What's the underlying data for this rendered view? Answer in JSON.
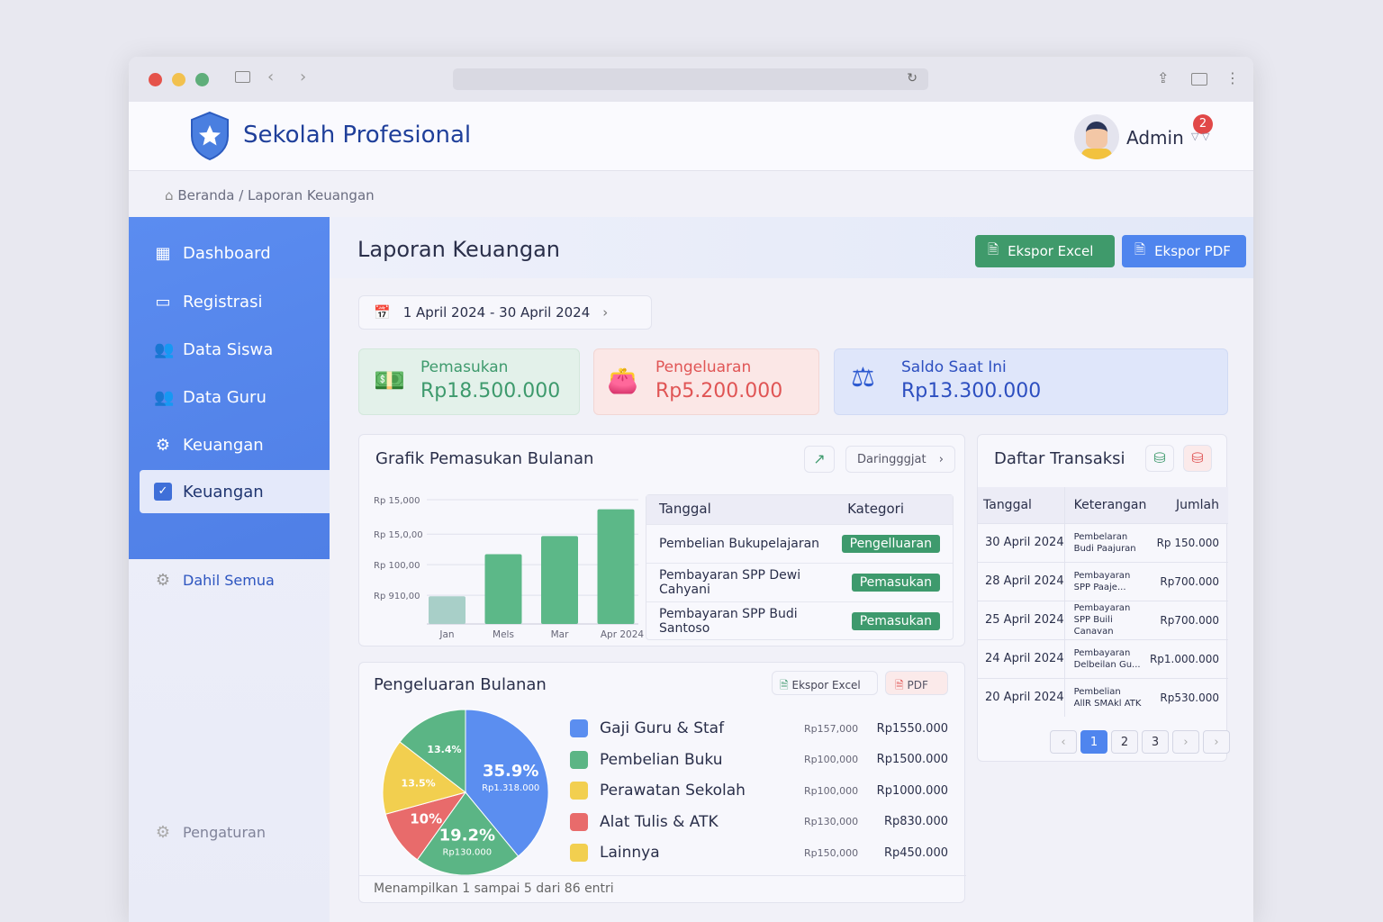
{
  "app": {
    "name": "Sekolah Profesional",
    "user": "Admin",
    "notifications": "2"
  },
  "breadcrumb": [
    "Beranda",
    "Laporan Keuangan"
  ],
  "sidebar": {
    "items": [
      {
        "label": "Dashboard",
        "icon": "grid-icon"
      },
      {
        "label": "Registrasi",
        "icon": "folder-icon"
      },
      {
        "label": "Data Siswa",
        "icon": "users-icon"
      },
      {
        "label": "Data Guru",
        "icon": "users-icon"
      },
      {
        "label": "Keuangan",
        "icon": "money-icon"
      },
      {
        "label": "Keuangan",
        "icon": "check-icon",
        "active": true
      }
    ],
    "extra": "Dahil Semua",
    "settings": "Pengaturan"
  },
  "page": {
    "title": "Laporan Keuangan",
    "export_excel": "Ekspor Excel",
    "export_pdf": "Ekspor PDF",
    "date_range": "1 April 2024 - 30 April 2024"
  },
  "stats": [
    {
      "label": "Pemasukan",
      "value": "Rp18.500.000",
      "color": "#3e9a6d"
    },
    {
      "label": "Pengeluaran",
      "value": "Rp5.200.000",
      "color": "#e05555"
    },
    {
      "label": "Saldo Saat Ini",
      "value": "Rp13.300.000",
      "color": "#2d4fc0"
    }
  ],
  "income_chart": {
    "title": "Grafik Pemasukan Bulanan",
    "filter": "Daringggjat"
  },
  "chart_data": [
    {
      "type": "bar",
      "title": "Grafik Pemasukan Bulanan",
      "categories": [
        "Jan",
        "Mels",
        "Mar",
        "Apr 2024"
      ],
      "values": [
        29,
        73,
        92,
        120
      ],
      "ylim": [
        0,
        130
      ],
      "yticks": [
        {
          "value": 130,
          "label": "Rp 15,000"
        },
        {
          "value": 94,
          "label": "Rp 15,0,00"
        },
        {
          "value": 62,
          "label": "Rp 100,00"
        },
        {
          "value": 30,
          "label": "Rp 910,00"
        }
      ],
      "grid": true
    },
    {
      "type": "pie",
      "title": "Pengeluaran Bulanan",
      "slices": [
        {
          "label": "Gaji Guru & Staf",
          "pct": 35.9,
          "text": "35.9%",
          "sub": "Rp1.318.000",
          "color": "#5b8ef0"
        },
        {
          "label": "Pembelian Buku",
          "pct": 19.2,
          "text": "19.2%",
          "sub": "Rp130.000",
          "color": "#5bb585"
        },
        {
          "label": "Alat Tulis & ATK",
          "pct": 10,
          "text": "10%",
          "color": "#e86b6b"
        },
        {
          "label": "Perawatan Sekolah",
          "pct": 13.5,
          "text": "13.5%",
          "color": "#f2cf4f"
        },
        {
          "label": "Lainnya",
          "pct": 13.4,
          "text": "13.4%",
          "color": "#5bb585"
        }
      ]
    }
  ],
  "mini_table": {
    "headers": [
      "Tanggal",
      "Kategori"
    ],
    "rows": [
      {
        "desc": "Pembelian Bukupelajaran",
        "cat": "Pengelluaran"
      },
      {
        "desc": "Pembayaran SPP Dewi Cahyani",
        "cat": "Pemasukan"
      },
      {
        "desc": "Pembayaran SPP Budi Santoso",
        "cat": "Pemasukan"
      }
    ]
  },
  "expense": {
    "title": "Pengeluaran Bulanan",
    "export_excel": "Ekspor Excel",
    "pdf": "PDF",
    "legend": [
      {
        "label": "Gaji Guru & Staf",
        "a": "Rp157,000",
        "b": "Rp1550.000",
        "color": "#5b8ef0"
      },
      {
        "label": "Pembelian Buku",
        "a": "Rp100,000",
        "b": "Rp1500.000",
        "color": "#5bb585"
      },
      {
        "label": "Perawatan Sekolah",
        "a": "Rp100,000",
        "b": "Rp1000.000",
        "color": "#f2cf4f"
      },
      {
        "label": "Alat Tulis & ATK",
        "a": "Rp130,000",
        "b": "Rp830.000",
        "color": "#e86b6b"
      },
      {
        "label": "Lainnya",
        "a": "Rp150,000",
        "b": "Rp450.000",
        "color": "#f2cf4f"
      }
    ],
    "footer": "Menampilkan 1 sampai 5 dari 86 entri"
  },
  "transactions": {
    "title": "Daftar Transaksi",
    "headers": [
      "Tanggal",
      "Keterangan",
      "Jumlah"
    ],
    "rows": [
      {
        "date": "30 April 2024",
        "d1": "Pembelaran",
        "d2": "Budi Paajuran",
        "amt": "Rp 150.000"
      },
      {
        "date": "28 April 2024",
        "d1": "Pembayaran",
        "d2": "SPP Paaje...",
        "amt": "Rp700.000"
      },
      {
        "date": "25 April 2024",
        "d1": "Pembayaran",
        "d2": "SPP Buili Canavan",
        "amt": "Rp700.000"
      },
      {
        "date": "24 April 2024",
        "d1": "Pembayaran",
        "d2": "Delbeilan Gu...",
        "amt": "Rp1.000.000"
      },
      {
        "date": "20 April 2024",
        "d1": "Pembelian",
        "d2": "AllR SMAkl ATK",
        "amt": "Rp530.000"
      }
    ],
    "pages": [
      "1",
      "2",
      "3"
    ]
  }
}
